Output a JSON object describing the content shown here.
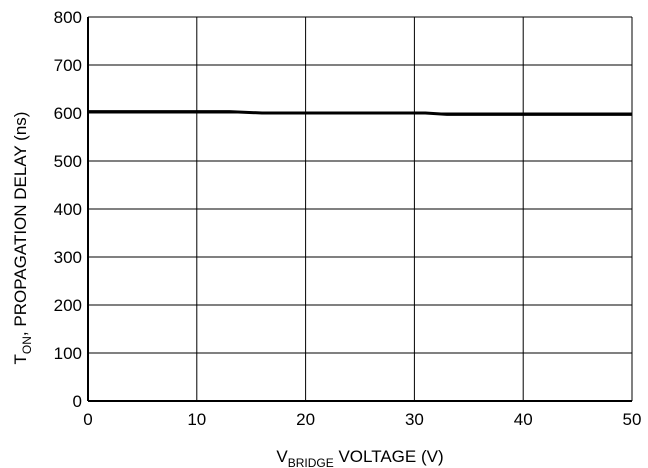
{
  "chart_data": {
    "type": "line",
    "x_axis": {
      "label_main": "V",
      "label_sub": "BRIDGE",
      "label_rest": " VOLTAGE (V)",
      "range": [
        0,
        50
      ],
      "ticks": [
        0,
        10,
        20,
        30,
        40,
        50
      ]
    },
    "y_axis": {
      "label_main": "T",
      "label_sub": "ON",
      "label_rest": ", PROPAGATION DELAY (ns)",
      "range": [
        0,
        800
      ],
      "ticks": [
        0,
        100,
        200,
        300,
        400,
        500,
        600,
        700,
        800
      ]
    },
    "grid": true,
    "series": [
      {
        "x": [
          0,
          5,
          10,
          13,
          16,
          20,
          25,
          30,
          31,
          33,
          40,
          45,
          50
        ],
        "y": [
          603,
          603,
          603,
          603,
          600,
          600,
          600,
          600,
          600,
          597,
          597,
          597,
          597
        ],
        "color": "#000000"
      }
    ]
  }
}
